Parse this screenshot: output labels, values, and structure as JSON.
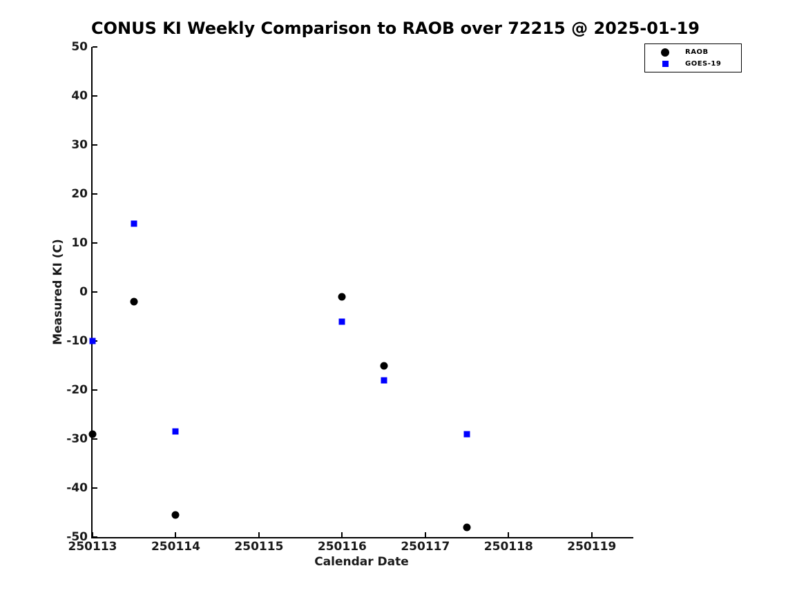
{
  "title": "CONUS KI Weekly Comparison to RAOB over 72215 @ 2025-01-19",
  "chart_data": {
    "type": "scatter",
    "title": "CONUS KI Weekly Comparison to RAOB over 72215 @ 2025-01-19",
    "xlabel": "Calendar Date",
    "ylabel": "Measured KI (C)",
    "xlim": [
      250113,
      250119.5
    ],
    "ylim": [
      -50,
      50
    ],
    "x_ticks": [
      250113,
      250114,
      250115,
      250116,
      250117,
      250118,
      250119
    ],
    "y_ticks": [
      50,
      40,
      30,
      20,
      10,
      0,
      -10,
      -20,
      -30,
      -40,
      -50
    ],
    "grid": false,
    "legend_position": "top-right",
    "tick_direction": "in",
    "series": [
      {
        "name": "RAOB",
        "marker": "circle",
        "color": "#000000",
        "points": [
          [
            250113,
            -29
          ],
          [
            250113.5,
            -2
          ],
          [
            250114,
            -45.5
          ],
          [
            250116,
            -1
          ],
          [
            250116.5,
            -15
          ],
          [
            250117.5,
            -48
          ]
        ]
      },
      {
        "name": "GOES-19",
        "marker": "square",
        "color": "#0000ff",
        "points": [
          [
            250113,
            -10
          ],
          [
            250113.5,
            14
          ],
          [
            250114,
            -28.5
          ],
          [
            250116,
            -6
          ],
          [
            250116.5,
            -18
          ],
          [
            250117.5,
            -29
          ]
        ]
      }
    ]
  }
}
